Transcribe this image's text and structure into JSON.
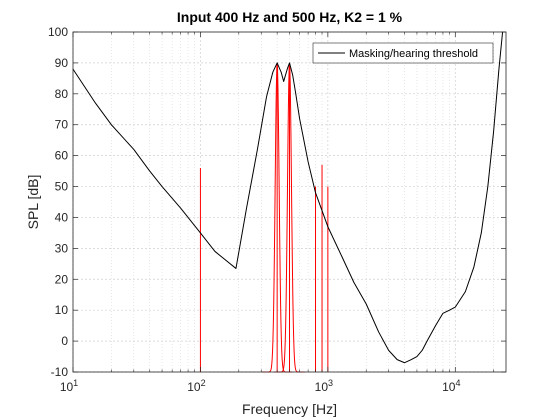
{
  "chart_data": {
    "type": "line",
    "title": "Input 400 Hz and 500 Hz, K2 = 1 %",
    "xlabel": "Frequency [Hz]",
    "ylabel": "SPL [dB]",
    "x_scale": "log",
    "xlim": [
      10,
      25000
    ],
    "ylim": [
      -10,
      100
    ],
    "y_ticks": [
      -10,
      0,
      10,
      20,
      30,
      40,
      50,
      60,
      70,
      80,
      90,
      100
    ],
    "x_ticks": [
      {
        "value": 10,
        "base": "10",
        "exp": "1"
      },
      {
        "value": 100,
        "base": "10",
        "exp": "2"
      },
      {
        "value": 1000,
        "base": "10",
        "exp": "3"
      },
      {
        "value": 10000,
        "base": "10",
        "exp": "4"
      }
    ],
    "grid": true,
    "minor_grid": true,
    "legend": {
      "location": "top-right",
      "entries": [
        "Masking/hearing threshold"
      ]
    },
    "colors": {
      "threshold": "#000000",
      "spectrum": "#ff0000",
      "grid": "#d0d0d0",
      "axis": "#262626"
    },
    "series": [
      {
        "name": "Masking/hearing threshold",
        "color": "#000000",
        "x": [
          10,
          15,
          20,
          30,
          40,
          50,
          70,
          100,
          130,
          160,
          190,
          230,
          280,
          330,
          370,
          400,
          430,
          450,
          480,
          500,
          530,
          560,
          600,
          700,
          800,
          1000,
          1300,
          1600,
          2000,
          2500,
          3000,
          3500,
          4000,
          4500,
          5000,
          5500,
          6000,
          7000,
          8000,
          9000,
          10000,
          12000,
          14000,
          16000,
          18000,
          20000,
          22000,
          23500
        ],
        "y": [
          88,
          77,
          70,
          62,
          55,
          50,
          43,
          35,
          29,
          26,
          23.5,
          43,
          62,
          79,
          87,
          90,
          87,
          84,
          88,
          90,
          86,
          80,
          72,
          58,
          48,
          37,
          27,
          19,
          12,
          3,
          -3,
          -6,
          -7,
          -6,
          -5,
          -3,
          0,
          5,
          9,
          10,
          11,
          16,
          24,
          35,
          50,
          68,
          88,
          100
        ]
      }
    ],
    "spectrum_lines": [
      {
        "name": "",
        "frequency": 100,
        "level": 56
      },
      {
        "name": "",
        "frequency": 400,
        "level": 90
      },
      {
        "name": "",
        "frequency": 500,
        "level": 90
      },
      {
        "name": "",
        "frequency": 800,
        "level": 50
      },
      {
        "name": "",
        "frequency": 900,
        "level": 57
      },
      {
        "name": "",
        "frequency": 1000,
        "level": 50
      }
    ],
    "spectrum_peaks": [
      {
        "center": 400,
        "level": 90
      },
      {
        "center": 500,
        "level": 90
      }
    ]
  }
}
